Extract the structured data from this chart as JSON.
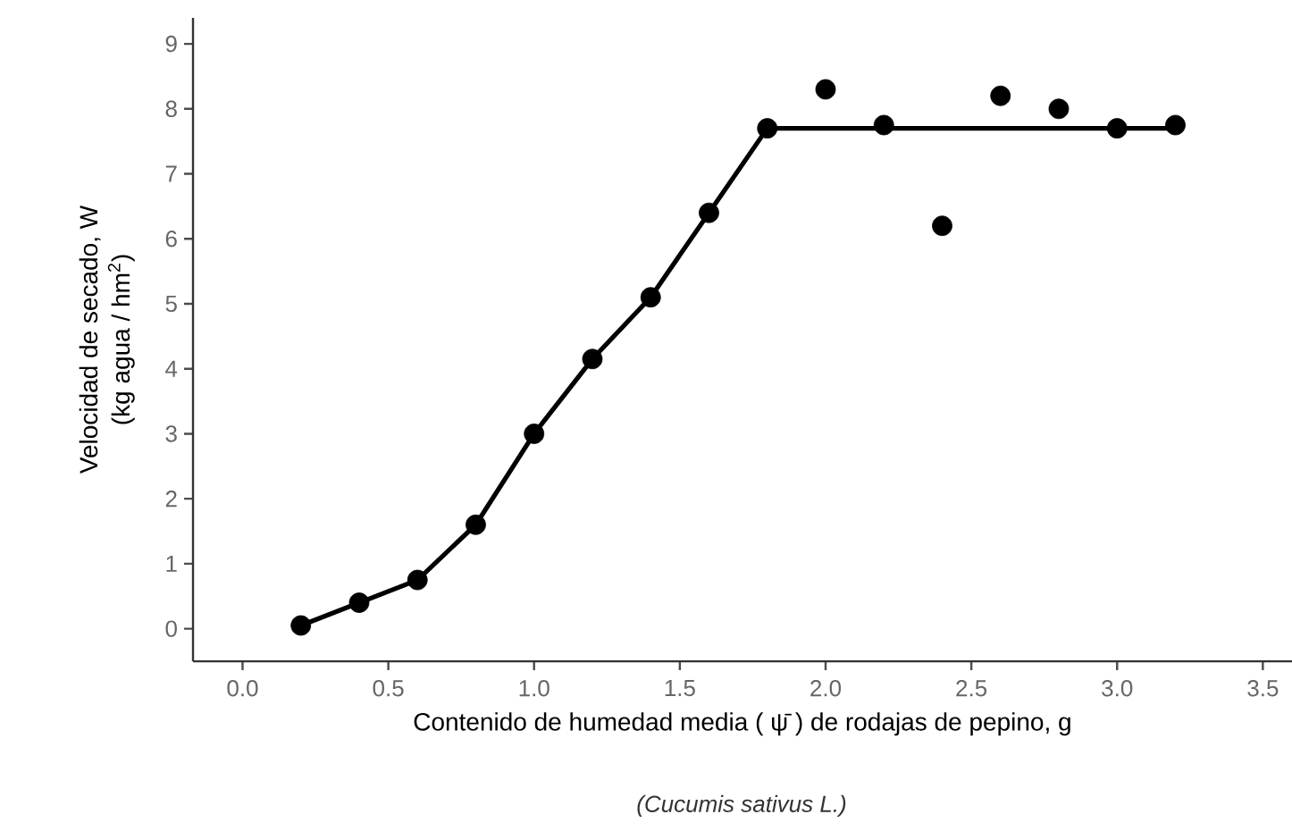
{
  "chart_data": {
    "type": "scatter",
    "xlabel": "Contenido de humedad media ( ψ̄ ) de rodajas de pepino, g",
    "ylabel": [
      "Velocidad de secado, W",
      "(kg agua / hm$^{2}$)"
    ],
    "annotations": [
      "(Cucumis sativus L.)"
    ],
    "xlim": [
      -0.17,
      3.6
    ],
    "ylim": [
      -0.5,
      9.4
    ],
    "xticks": [
      {
        "value": 0,
        "label": "0.0"
      },
      {
        "value": 0.5,
        "label": "0.5"
      },
      {
        "value": 1,
        "label": "1.0"
      },
      {
        "value": 1.5,
        "label": "1.5"
      },
      {
        "value": 2,
        "label": "2.0"
      },
      {
        "value": 2.5,
        "label": "2.5"
      },
      {
        "value": 3,
        "label": "3.0"
      },
      {
        "value": 3.5,
        "label": "3.5"
      }
    ],
    "yticks": [
      0,
      1,
      2,
      3,
      4,
      5,
      6,
      7,
      8,
      9
    ],
    "marker": "circle",
    "series": [
      {
        "color": "#000000",
        "x": [
          0.2,
          0.4,
          0.6,
          0.8,
          1.0,
          1.2,
          1.4,
          1.6,
          1.8,
          2.0,
          2.2,
          2.4,
          2.6,
          2.8,
          3.0,
          3.2
        ],
        "values": [
          0.05,
          0.4,
          0.75,
          1.6,
          3.0,
          4.15,
          5.1,
          6.4,
          7.7,
          8.3,
          7.75,
          6.2,
          8.2,
          8.0,
          7.7,
          7.75
        ]
      },
      {
        "type": "line",
        "color": "#000000",
        "marker": "none",
        "line_style": "solid",
        "x": [
          0.2,
          0.4,
          0.6,
          0.8,
          1.0,
          1.2,
          1.4,
          1.6,
          1.8,
          3.2
        ],
        "values": [
          0.05,
          0.4,
          0.75,
          1.6,
          3.0,
          4.15,
          5.1,
          6.4,
          7.7,
          7.7
        ]
      }
    ]
  }
}
